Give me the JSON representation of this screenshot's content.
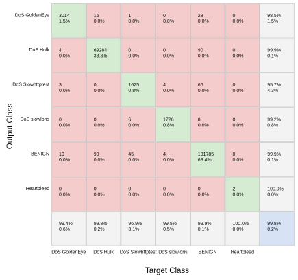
{
  "chart_data": {
    "type": "heatmap",
    "xlabel": "Target Class",
    "ylabel": "Output Class",
    "classes": [
      "DoS GoldenEye",
      "DoS Hulk",
      "DoS Slowhttptest",
      "DoS slowloris",
      "BENIGN",
      "Heartbleed"
    ],
    "matrix": [
      [
        {
          "count": "3014",
          "pct": "1.5%"
        },
        {
          "count": "16",
          "pct": "0.0%"
        },
        {
          "count": "1",
          "pct": "0.0%"
        },
        {
          "count": "0",
          "pct": "0.0%"
        },
        {
          "count": "28",
          "pct": "0.0%"
        },
        {
          "count": "0",
          "pct": "0.0%"
        }
      ],
      [
        {
          "count": "4",
          "pct": "0.0%"
        },
        {
          "count": "69284",
          "pct": "33.3%"
        },
        {
          "count": "0",
          "pct": "0.0%"
        },
        {
          "count": "0",
          "pct": "0.0%"
        },
        {
          "count": "90",
          "pct": "0.0%"
        },
        {
          "count": "0",
          "pct": "0.0%"
        }
      ],
      [
        {
          "count": "3",
          "pct": "0.0%"
        },
        {
          "count": "0",
          "pct": "0.0%"
        },
        {
          "count": "1625",
          "pct": "0.8%"
        },
        {
          "count": "4",
          "pct": "0.0%"
        },
        {
          "count": "66",
          "pct": "0.0%"
        },
        {
          "count": "0",
          "pct": "0.0%"
        }
      ],
      [
        {
          "count": "0",
          "pct": "0.0%"
        },
        {
          "count": "0",
          "pct": "0.0%"
        },
        {
          "count": "6",
          "pct": "0.0%"
        },
        {
          "count": "1726",
          "pct": "0.8%"
        },
        {
          "count": "8",
          "pct": "0.0%"
        },
        {
          "count": "0",
          "pct": "0.0%"
        }
      ],
      [
        {
          "count": "10",
          "pct": "0.0%"
        },
        {
          "count": "90",
          "pct": "0.0%"
        },
        {
          "count": "45",
          "pct": "0.0%"
        },
        {
          "count": "4",
          "pct": "0.0%"
        },
        {
          "count": "131785",
          "pct": "63.4%"
        },
        {
          "count": "0",
          "pct": "0.0%"
        }
      ],
      [
        {
          "count": "0",
          "pct": "0.0%"
        },
        {
          "count": "0",
          "pct": "0.0%"
        },
        {
          "count": "0",
          "pct": "0.0%"
        },
        {
          "count": "0",
          "pct": "0.0%"
        },
        {
          "count": "0",
          "pct": "0.0%"
        },
        {
          "count": "2",
          "pct": "0.0%"
        }
      ]
    ],
    "row_summary": [
      {
        "correct": "98.5%",
        "error": "1.5%"
      },
      {
        "correct": "99.9%",
        "error": "0.1%"
      },
      {
        "correct": "95.7%",
        "error": "4.3%"
      },
      {
        "correct": "99.2%",
        "error": "0.8%"
      },
      {
        "correct": "99.9%",
        "error": "0.1%"
      },
      {
        "correct": "100.0%",
        "error": "0.0%"
      }
    ],
    "col_summary": [
      {
        "correct": "99.4%",
        "error": "0.6%"
      },
      {
        "correct": "99.8%",
        "error": "0.2%"
      },
      {
        "correct": "96.9%",
        "error": "3.1%"
      },
      {
        "correct": "99.5%",
        "error": "0.5%"
      },
      {
        "correct": "99.9%",
        "error": "0.1%"
      },
      {
        "correct": "100.0%",
        "error": "0.0%"
      }
    ],
    "overall": {
      "correct": "99.8%",
      "error": "0.2%"
    },
    "colors": {
      "correct": "#d6ecd2",
      "incorrect": "#f4cccc",
      "summary": "#f3f3f3",
      "overall": "#d7e3f5",
      "border": "#bbbbbb"
    }
  }
}
